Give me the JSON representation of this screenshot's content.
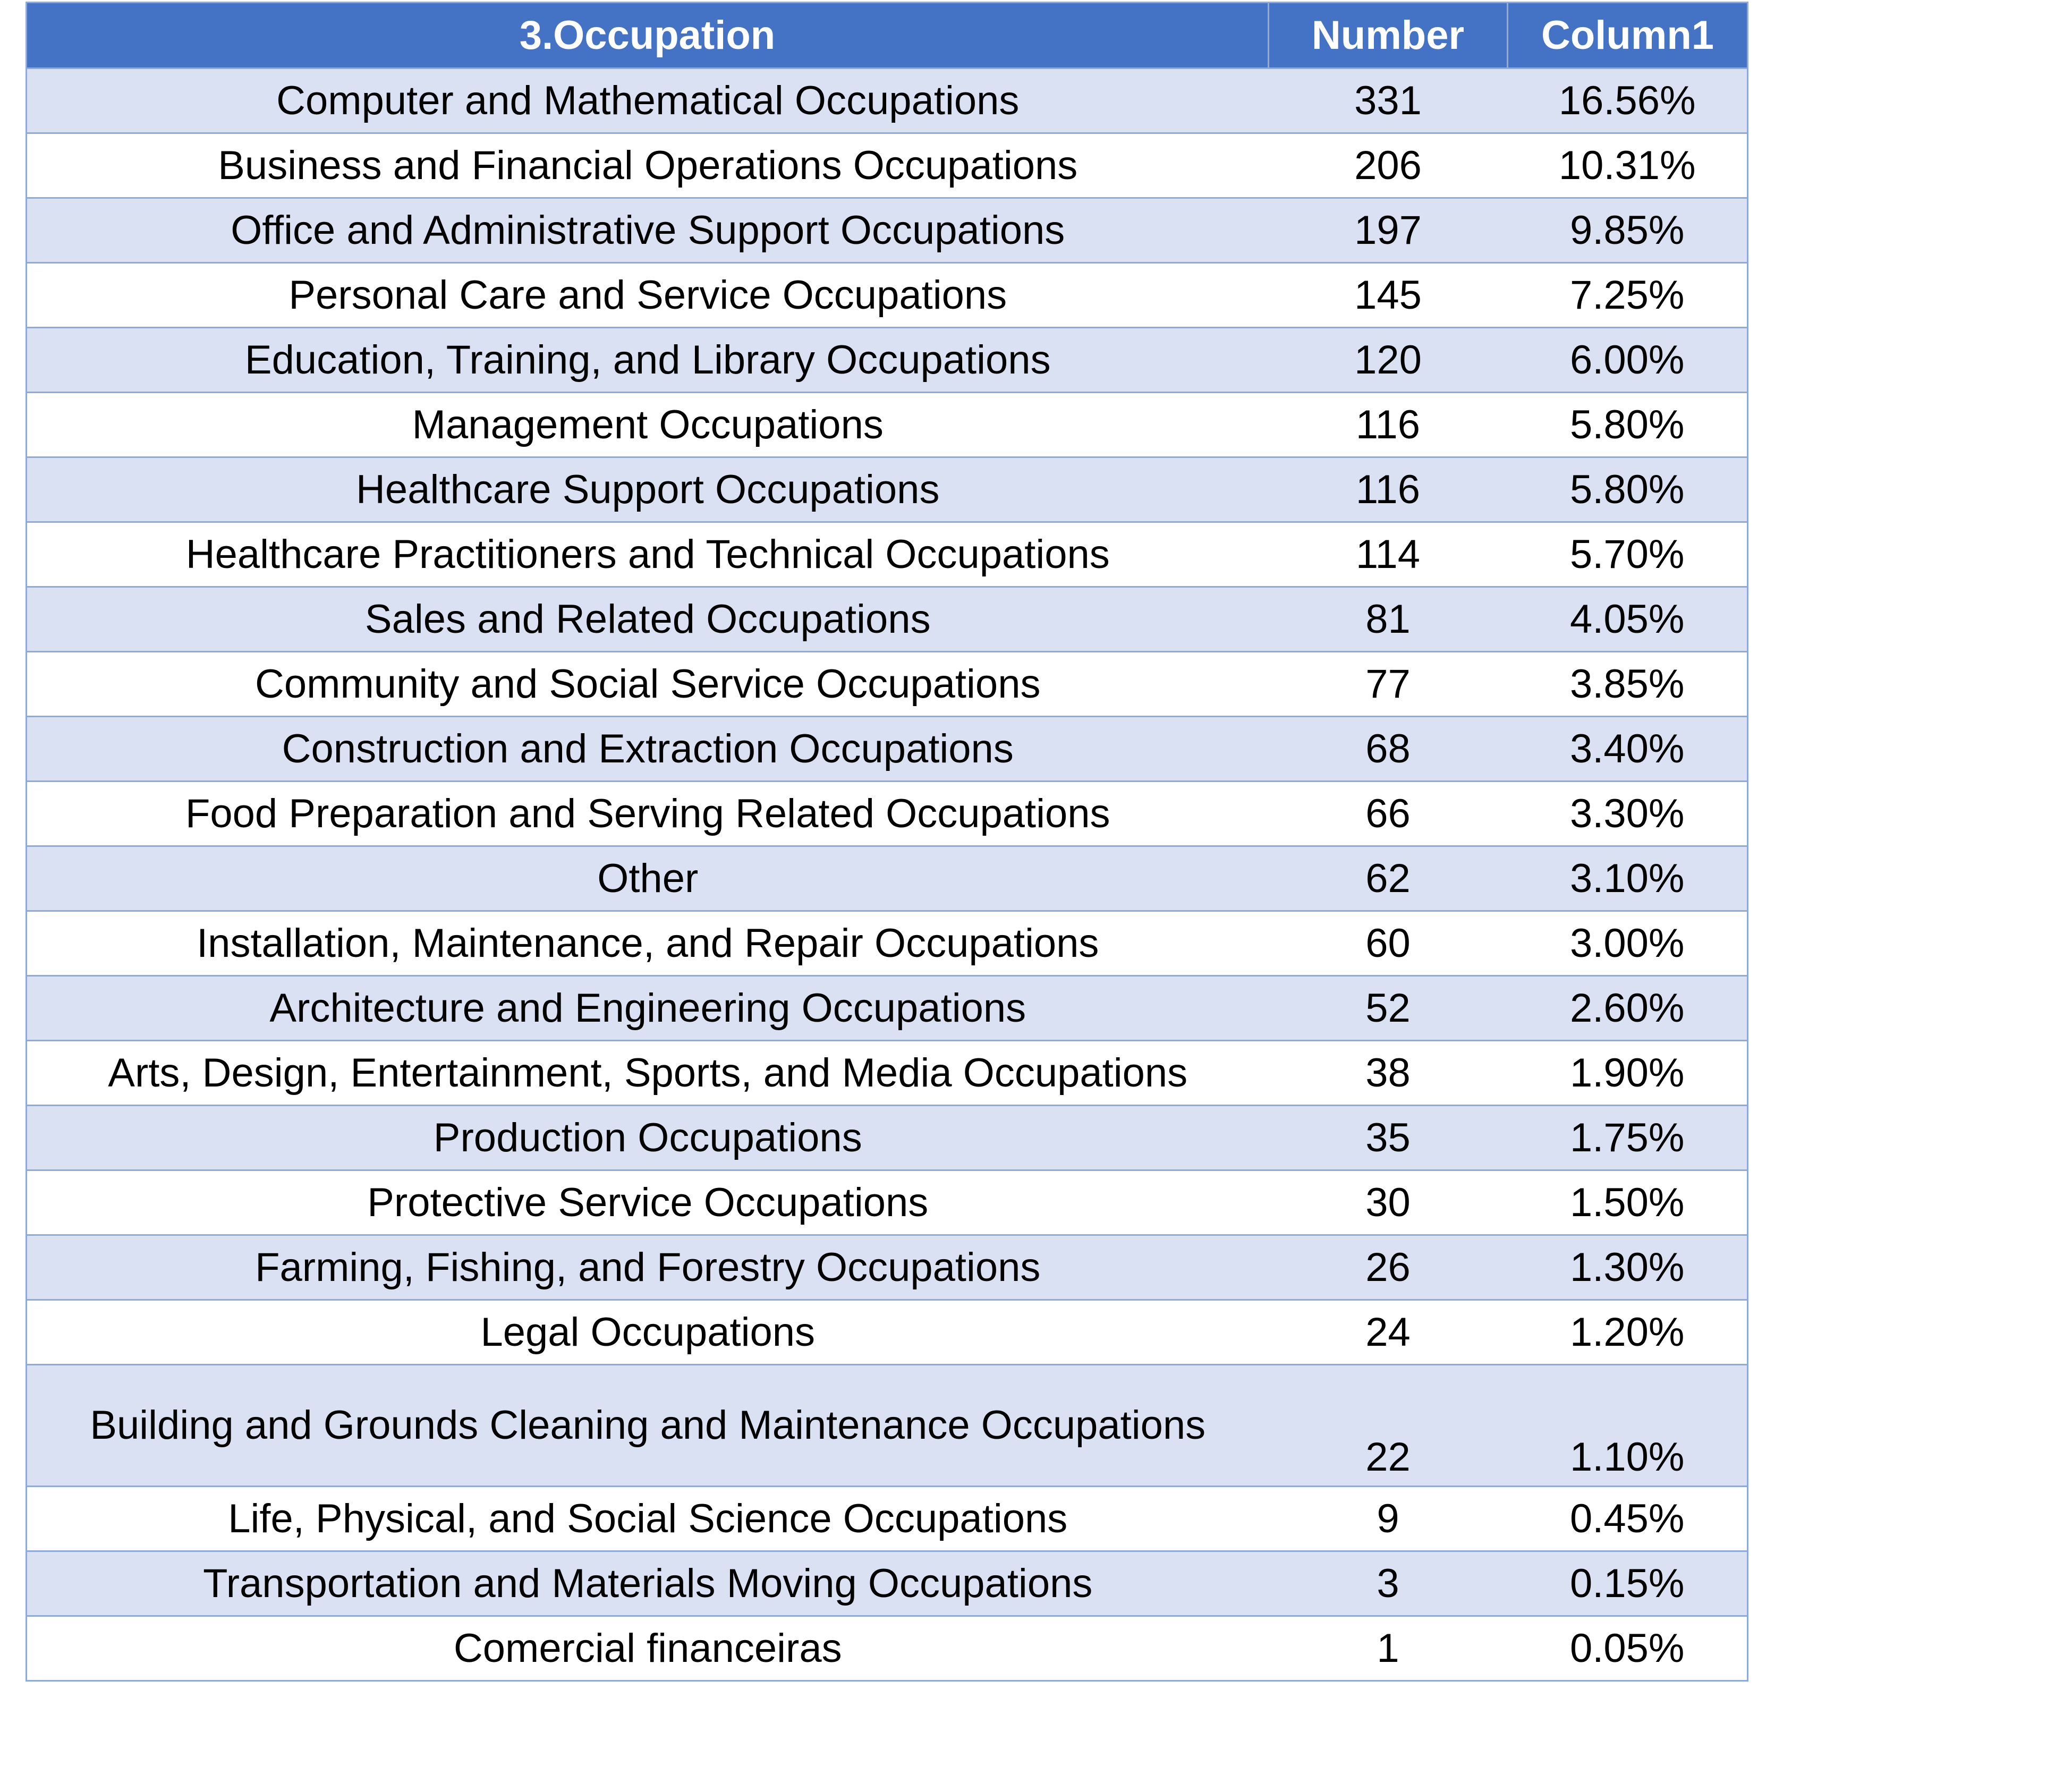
{
  "table": {
    "headers": [
      "3.Occupation",
      "Number",
      "Column1"
    ],
    "rows": [
      {
        "occupation": "Computer and Mathematical Occupations",
        "number": "331",
        "percent": "16.56%"
      },
      {
        "occupation": "Business and Financial Operations Occupations",
        "number": "206",
        "percent": "10.31%"
      },
      {
        "occupation": "Office and Administrative Support Occupations",
        "number": "197",
        "percent": "9.85%"
      },
      {
        "occupation": "Personal Care and Service Occupations",
        "number": "145",
        "percent": "7.25%"
      },
      {
        "occupation": "Education, Training, and Library Occupations",
        "number": "120",
        "percent": "6.00%"
      },
      {
        "occupation": "Management Occupations",
        "number": "116",
        "percent": "5.80%"
      },
      {
        "occupation": "Healthcare Support Occupations",
        "number": "116",
        "percent": "5.80%"
      },
      {
        "occupation": "Healthcare Practitioners and Technical Occupations",
        "number": "114",
        "percent": "5.70%"
      },
      {
        "occupation": "Sales and Related Occupations",
        "number": "81",
        "percent": "4.05%"
      },
      {
        "occupation": "Community and Social Service Occupations",
        "number": "77",
        "percent": "3.85%"
      },
      {
        "occupation": "Construction and Extraction Occupations",
        "number": "68",
        "percent": "3.40%"
      },
      {
        "occupation": "Food Preparation and Serving Related Occupations",
        "number": "66",
        "percent": "3.30%"
      },
      {
        "occupation": "Other",
        "number": "62",
        "percent": "3.10%"
      },
      {
        "occupation": "Installation, Maintenance, and Repair Occupations",
        "number": "60",
        "percent": "3.00%"
      },
      {
        "occupation": "Architecture and Engineering Occupations",
        "number": "52",
        "percent": "2.60%"
      },
      {
        "occupation": "Arts, Design, Entertainment, Sports, and Media Occupations",
        "number": "38",
        "percent": "1.90%"
      },
      {
        "occupation": "Production Occupations",
        "number": "35",
        "percent": "1.75%"
      },
      {
        "occupation": "Protective Service Occupations",
        "number": "30",
        "percent": "1.50%"
      },
      {
        "occupation": "Farming, Fishing, and Forestry Occupations",
        "number": "26",
        "percent": "1.30%"
      },
      {
        "occupation": "Legal Occupations",
        "number": "24",
        "percent": "1.20%"
      },
      {
        "occupation": "Building and Grounds Cleaning and Maintenance Occupations",
        "number": "22",
        "percent": "1.10%"
      },
      {
        "occupation": "Life, Physical, and Social Science Occupations",
        "number": "9",
        "percent": "0.45%"
      },
      {
        "occupation": "Transportation and Materials Moving Occupations",
        "number": "3",
        "percent": "0.15%"
      },
      {
        "occupation": "Comercial financeiras",
        "number": "1",
        "percent": "0.05%"
      }
    ]
  },
  "colors": {
    "header_bg": "#4472c4",
    "header_text": "#ffffff",
    "band_bg": "#d9e1f2",
    "plain_bg": "#ffffff",
    "border": "#8ea9db"
  }
}
